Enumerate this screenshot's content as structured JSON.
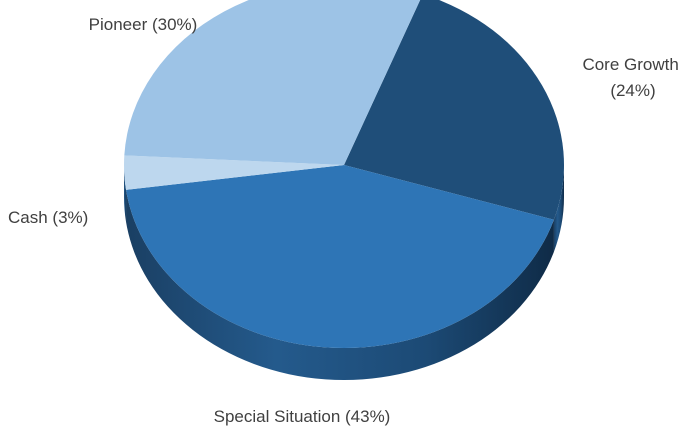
{
  "chart_data": {
    "type": "pie",
    "style": "3d",
    "title": "",
    "slices": [
      {
        "label": "Core Growth (24%)",
        "label_lines": [
          "Core Growth",
          "(24%)"
        ],
        "value": 24,
        "color": "#1f4e79"
      },
      {
        "label": "Special Situation (43%)",
        "label_lines": [
          "Special Situation (43%)"
        ],
        "value": 43,
        "color": "#2e75b6"
      },
      {
        "label": "Cash (3%)",
        "label_lines": [
          "Cash (3%)"
        ],
        "value": 3,
        "color": "#bdd7ee"
      },
      {
        "label": "Pioneer (30%)",
        "label_lines": [
          "Pioneer (30%)"
        ],
        "value": 30,
        "color": "#9dc3e6"
      }
    ]
  }
}
